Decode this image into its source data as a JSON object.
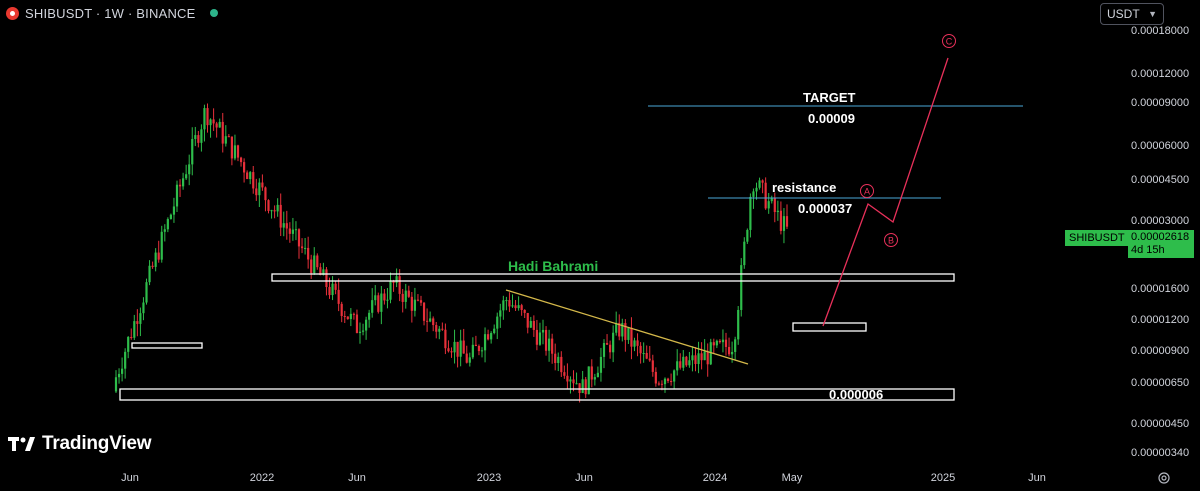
{
  "header": {
    "symbol_title": "SHIBUSDT · 1W · BINANCE",
    "currency_selector": "USDT"
  },
  "price_axis": {
    "labels": [
      "0.00018000",
      "0.00012000",
      "0.00009000",
      "0.00006000",
      "0.00004500",
      "0.00003000",
      "0.00001600",
      "0.00001200",
      "0.00000900",
      "0.00000650",
      "0.00000450",
      "0.00000340"
    ]
  },
  "time_axis": {
    "labels": [
      "Jun",
      "2022",
      "Jun",
      "2023",
      "Jun",
      "2024",
      "May",
      "2025",
      "Jun"
    ]
  },
  "last_price_badge": {
    "symbol": "SHIBUSDT",
    "price": "0.00002618",
    "countdown": "4d 15h"
  },
  "annotations": {
    "target_label": "TARGET",
    "target_value": "0.00009",
    "resistance_label": "resistance",
    "resistance_value": "0.000037",
    "author": "Hadi Bahrami",
    "support_value": "0.000006",
    "wave_a": "A",
    "wave_b": "B",
    "wave_c": "C"
  },
  "branding": {
    "logo_text": "TradingView"
  },
  "colors": {
    "background": "#000000",
    "up_candle": "#2ebd4b",
    "down_candle": "#e8303a",
    "target_line": "#4aa8d8",
    "trend_line": "#d4b84a",
    "projection": "#e8305a",
    "box": "#ffffff"
  },
  "chart_data": {
    "type": "candlestick",
    "instrument": "SHIBUSDT",
    "timeframe": "1W",
    "y_scale": "log",
    "levels": {
      "target": 9e-05,
      "resistance": 3.7e-05,
      "support": 6e-06
    },
    "anchor_points": [
      {
        "t": "2021-05",
        "price": 6e-06
      },
      {
        "t": "2021-10",
        "price": 8.5e-05
      },
      {
        "t": "2022-06",
        "price": 1.1e-05
      },
      {
        "t": "2022-08",
        "price": 1.65e-05
      },
      {
        "t": "2022-12",
        "price": 8e-06
      },
      {
        "t": "2023-02",
        "price": 1.45e-05
      },
      {
        "t": "2023-06",
        "price": 6.2e-06
      },
      {
        "t": "2023-08",
        "price": 1.1e-05
      },
      {
        "t": "2023-10",
        "price": 6.8e-06
      },
      {
        "t": "2024-02",
        "price": 9.5e-06
      },
      {
        "t": "2024-03",
        "price": 4.5e-05
      },
      {
        "t": "2024-05",
        "price": 2.62e-05
      }
    ],
    "projection": [
      {
        "label": "",
        "price": 1.25e-05
      },
      {
        "label": "A",
        "price": 3.4e-05
      },
      {
        "label": "B",
        "price": 2.9e-05
      },
      {
        "label": "C",
        "price": 0.00015
      }
    ]
  }
}
